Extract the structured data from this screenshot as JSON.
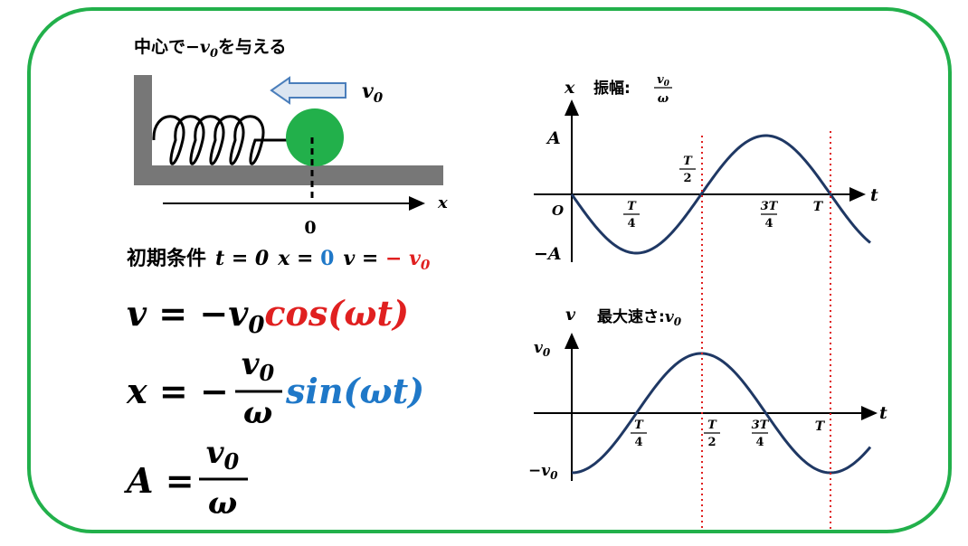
{
  "setup": {
    "title": {
      "prefix": "中心で",
      "symbol": "−v",
      "sub": "0",
      "suffix": "を与える"
    },
    "arrow_label": {
      "symbol": "v",
      "sub": "0"
    },
    "axis_label": "x",
    "origin": "0"
  },
  "condition": {
    "label": "初期条件",
    "t_eq": "t = 0",
    "x_eq": "x = ",
    "x_val": "0",
    "v_eq": "v = ",
    "v_val": "− v",
    "v_sub": "0"
  },
  "equations": {
    "velocity": {
      "lhs": "v = −v",
      "sub": "0",
      "term": "cos(ωt)"
    },
    "position": {
      "lhs": "x = −",
      "num": "v",
      "num_sub": "0",
      "den": "ω",
      "term": "sin(ωt)"
    },
    "amplitude": {
      "lhs": "A =",
      "num": "v",
      "num_sub": "0",
      "den": "ω"
    }
  },
  "graphs": {
    "position": {
      "y_label": "x",
      "caption": "振幅:",
      "cap_num": "v",
      "cap_sub": "0",
      "cap_den": "ω",
      "max": "A",
      "min": "−A",
      "origin": "O",
      "t_label": "t",
      "quarter": {
        "num": "T",
        "den": "4"
      },
      "half": {
        "num": "T",
        "den": "2"
      },
      "three_quarter": {
        "num": "3T",
        "den": "4"
      },
      "period": "T"
    },
    "velocity": {
      "y_label": "v",
      "caption": "最大速さ:",
      "cap_symbol": "v",
      "cap_sub": "0",
      "max": "v",
      "max_sub": "0",
      "min": "−v",
      "min_sub": "0",
      "t_label": "t",
      "quarter": {
        "num": "T",
        "den": "4"
      },
      "half": {
        "num": "T",
        "den": "2"
      },
      "three_quarter": {
        "num": "3T",
        "den": "4"
      },
      "period": "T"
    }
  }
}
